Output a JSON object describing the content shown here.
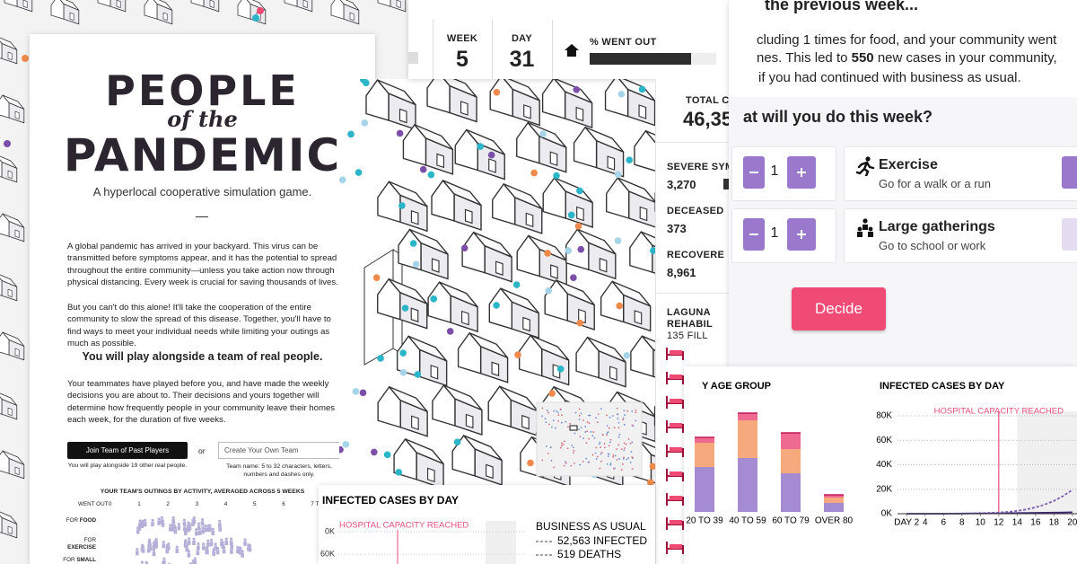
{
  "intro": {
    "title_1": "PEOPLE",
    "title_2": "of the",
    "title_3": "PANDEMIC",
    "subtitle": "A hyperlocal cooperative simulation game.",
    "paragraphs": [
      "A global pandemic has arrived in your backyard. This virus can be transmitted before symptoms appear, and it has the potential to spread throughout the entire community—unless you take action now through physical distancing. Every week is crucial for saving thousands of lives.",
      "But you can't do this alone! It'll take the cooperation of the entire community to slow the spread of this disease. Together, you'll have to find ways to meet your individual needs while limiting your outings as much as possible."
    ],
    "highlight": "You will play alongside a team of real people.",
    "paragraph_3": "Your teammates have played before you, and have made the weekly decisions you are about to. Their decisions and yours together will determine how frequently people in your community leave their homes each week, for the duration of five weeks.",
    "join_button": "Join Team of Past Players",
    "or": "or",
    "team_input_placeholder": "Create Your Own Team",
    "join_note": "You will play alongside 19 other real people.",
    "team_note": "Team name: 5 to 32 characters, letters, numbers and dashes only."
  },
  "outings": {
    "title": "YOUR TEAM'S OUTINGS BY ACTIVITY, AVERAGED ACROSS 5 WEEKS",
    "axis_label": "WENT OUT",
    "ticks": [
      0,
      1,
      2,
      3,
      4,
      5,
      6,
      "7 T"
    ],
    "rows": [
      {
        "prefix": "FOR",
        "activity": "FOOD"
      },
      {
        "prefix": "FOR",
        "activity": "EXERCISE"
      },
      {
        "prefix": "FOR",
        "activity": "SMALL"
      }
    ]
  },
  "status": {
    "week_label": "WEEK",
    "week": 5,
    "day_label": "DAY",
    "day": 31,
    "went_out_label": "% WENT OUT",
    "went_out": 80
  },
  "stats": {
    "total_label": "TOTAL CASES",
    "total": "46,35",
    "severe_label": "SEVERE SYMP",
    "severe": "3,270",
    "deceased_label": "DECEASED",
    "deceased": "373",
    "recovered_label": "RECOVERE",
    "recovered": "8,961"
  },
  "hospital": {
    "name_1": "LAGUNA",
    "name_2": "REHABIL",
    "beds": "135 FILL"
  },
  "decision": {
    "heading": "the previous week...",
    "line_1": "cluding 1 times for food, and your community went",
    "line_2_pre": "nes. This led to ",
    "line_2_bold": "550",
    "line_2_post": " new cases in your community,",
    "line_3": "if you had continued with business as usual.",
    "question": "at will you do this week?",
    "activities": [
      {
        "count": 1,
        "name": "Exercise",
        "description": "Go for a walk or a run"
      },
      {
        "count": 1,
        "name": "Large gatherings",
        "description": "Go to school or work"
      }
    ],
    "decide_button": "Decide"
  },
  "cases_preview": {
    "title": "INFECTED CASES BY DAY",
    "annotation": "HOSPITAL CAPACITY REACHED",
    "tick_labels": [
      "0K",
      "60K"
    ],
    "legend_title": "BUSINESS AS USUAL",
    "legend": [
      "52,563 INFECTED",
      "519 DEATHS"
    ]
  },
  "chart_data": [
    {
      "type": "stacked-bar",
      "title": "Y AGE GROUP",
      "categories": [
        "20 TO 39",
        "40 TO 59",
        "60 TO 79",
        "OVER 80"
      ],
      "series": [
        {
          "color": "#a58bd2",
          "values": [
            50,
            60,
            43,
            10
          ]
        },
        {
          "color": "#f6a97c",
          "values": [
            27,
            42,
            27,
            6
          ]
        },
        {
          "color": "#ee6a90",
          "values": [
            6,
            8,
            18,
            3
          ]
        }
      ]
    },
    {
      "type": "line",
      "title": "INFECTED CASES BY DAY",
      "annotation": "HOSPITAL CAPACITY REACHED",
      "annotation_x": 12,
      "shade_from": 14,
      "x": [
        2,
        3,
        4,
        5,
        6,
        7,
        8,
        9,
        10,
        11,
        12,
        13,
        14,
        15,
        16,
        17,
        18,
        19,
        20
      ],
      "xlim": [
        1,
        20.5
      ],
      "xticks": [
        {
          "value": 2,
          "label": "DAY 2"
        },
        4,
        6,
        8,
        10,
        12,
        14,
        16,
        18,
        20
      ],
      "ylim": [
        0,
        80000
      ],
      "yticks": [
        {
          "value": 0,
          "label": "0K"
        },
        {
          "value": 20000,
          "label": "20K"
        },
        {
          "value": 40000,
          "label": "40K"
        },
        {
          "value": 60000,
          "label": "60K"
        },
        {
          "value": 80000,
          "label": "80K"
        }
      ],
      "grid": true,
      "series": [
        {
          "color": "#3f2a78",
          "values": [
            0,
            0,
            0,
            0,
            0,
            100,
            100,
            200,
            200,
            300,
            300,
            400,
            500,
            600,
            700,
            800,
            900,
            1000,
            1200
          ]
        },
        {
          "color": "#7b5cb0",
          "dashed": true,
          "values": [
            0,
            0,
            0,
            0,
            100,
            100,
            200,
            300,
            500,
            700,
            1000,
            1500,
            2300,
            3500,
            5200,
            7500,
            10500,
            14500,
            19500
          ]
        }
      ]
    }
  ]
}
